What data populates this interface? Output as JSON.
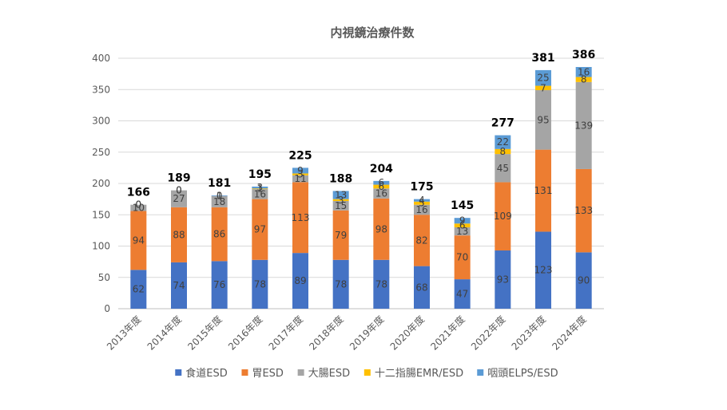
{
  "chart_data": {
    "type": "bar",
    "stacked": true,
    "title": "内視鏡治療件数",
    "xlabel": "",
    "ylabel": "",
    "ylim": [
      0,
      400
    ],
    "yticks": [
      0,
      50,
      100,
      150,
      200,
      250,
      300,
      350,
      400
    ],
    "grid": true,
    "legend_position": "bottom",
    "categories": [
      "2013年度",
      "2014年度",
      "2015年度",
      "2016年度",
      "2017年度",
      "2018年度",
      "2019年度",
      "2020年度",
      "2021年度",
      "2022年度",
      "2023年度",
      "2024年度"
    ],
    "series": [
      {
        "name": "食道ESD",
        "color": "#4472C4",
        "values": [
          62,
          74,
          76,
          78,
          89,
          78,
          78,
          68,
          47,
          93,
          123,
          90
        ]
      },
      {
        "name": "胃ESD",
        "color": "#ED7D31",
        "values": [
          94,
          88,
          86,
          97,
          113,
          79,
          98,
          82,
          70,
          109,
          131,
          133
        ]
      },
      {
        "name": "大腸ESD",
        "color": "#A5A5A5",
        "values": [
          10,
          27,
          18,
          16,
          11,
          15,
          16,
          16,
          13,
          45,
          95,
          139
        ]
      },
      {
        "name": "十二指腸EMR/ESD",
        "color": "#FFC000",
        "values": [
          0,
          0,
          0,
          1,
          3,
          3,
          6,
          5,
          6,
          8,
          7,
          8
        ]
      },
      {
        "name": "咽頭ELPS/ESD",
        "color": "#5B9BD5",
        "values": [
          0,
          0,
          1,
          3,
          9,
          13,
          6,
          4,
          9,
          22,
          25,
          16
        ]
      }
    ],
    "totals": [
      166,
      189,
      181,
      195,
      225,
      188,
      204,
      175,
      145,
      277,
      381,
      386
    ]
  }
}
